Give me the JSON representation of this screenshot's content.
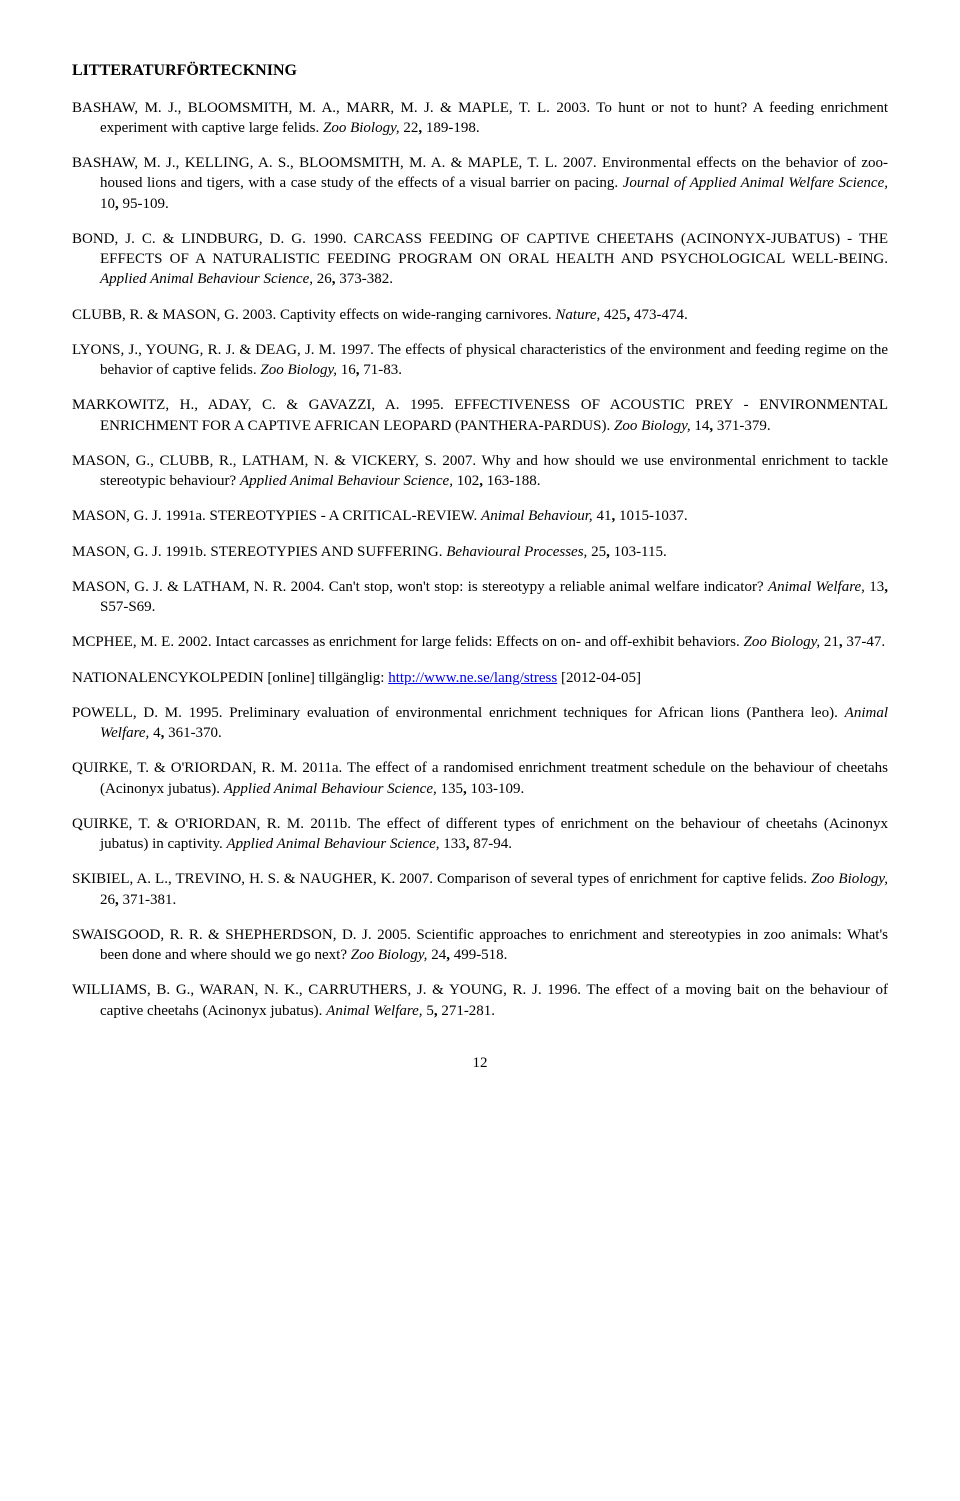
{
  "heading": "LITTERATURFÖRTECKNING",
  "refs": [
    {
      "html": "BASHAW, M. J., BLOOMSMITH, M. A., MARR, M. J. & MAPLE, T. L. 2003. To hunt or not to hunt? A feeding enrichment experiment with captive large felids. <i>Zoo Biology,</i> 22<b>,</b> 189-198."
    },
    {
      "html": "BASHAW, M. J., KELLING, A. S., BLOOMSMITH, M. A. & MAPLE, T. L. 2007. Environmental effects on the behavior of zoo-housed lions and tigers, with a case study of the effects of a visual barrier on pacing. <i>Journal of Applied Animal Welfare Science,</i> 10<b>,</b> 95-109."
    },
    {
      "html": "BOND, J. C. & LINDBURG, D. G. 1990. CARCASS FEEDING OF CAPTIVE CHEETAHS (ACINONYX-JUBATUS) - THE EFFECTS OF A NATURALISTIC FEEDING PROGRAM ON ORAL HEALTH AND PSYCHOLOGICAL WELL-BEING. <i>Applied Animal Behaviour Science,</i> 26<b>,</b> 373-382."
    },
    {
      "html": "CLUBB, R. & MASON, G. 2003. Captivity effects on wide-ranging carnivores. <i>Nature,</i> 425<b>,</b> 473-474."
    },
    {
      "html": "LYONS, J., YOUNG, R. J. & DEAG, J. M. 1997. The effects of physical characteristics of the environment and feeding regime on the behavior of captive felids. <i>Zoo Biology,</i> 16<b>,</b> 71-83."
    },
    {
      "html": "MARKOWITZ, H., ADAY, C. & GAVAZZI, A. 1995. EFFECTIVENESS OF ACOUSTIC PREY - ENVIRONMENTAL ENRICHMENT FOR A CAPTIVE AFRICAN LEOPARD (PANTHERA-PARDUS). <i>Zoo Biology,</i> 14<b>,</b> 371-379."
    },
    {
      "html": "MASON, G., CLUBB, R., LATHAM, N. & VICKERY, S. 2007. Why and how should we use environmental enrichment to tackle stereotypic behaviour? <i>Applied Animal Behaviour Science,</i> 102<b>,</b> 163-188."
    },
    {
      "html": "MASON, G. J. 1991a. STEREOTYPIES - A CRITICAL-REVIEW. <i>Animal Behaviour,</i> 41<b>,</b> 1015-1037."
    },
    {
      "html": "MASON, G. J. 1991b. STEREOTYPIES AND SUFFERING. <i>Behavioural Processes,</i> 25<b>,</b> 103-115."
    },
    {
      "html": "MASON, G. J. & LATHAM, N. R. 2004. Can't stop, won't stop: is stereotypy a reliable animal welfare indicator? <i>Animal Welfare,</i> 13<b>,</b> S57-S69."
    },
    {
      "html": "MCPHEE, M. E. 2002. Intact carcasses as enrichment for large felids: Effects on on- and off-exhibit behaviors. <i>Zoo Biology,</i> 21<b>,</b> 37-47."
    },
    {
      "html": "NATIONALENCYKOLPEDIN [online] tillgänglig: <a class=\"link\" href=\"#\">http://www.ne.se/lang/stress</a> [2012-04-05]"
    },
    {
      "html": "POWELL, D. M. 1995. Preliminary evaluation of environmental enrichment techniques for African lions (Panthera leo). <i>Animal Welfare,</i> 4<b>,</b> 361-370."
    },
    {
      "html": "QUIRKE, T. & O'RIORDAN, R. M. 2011a. The effect of a randomised enrichment treatment schedule on the behaviour of cheetahs (Acinonyx jubatus). <i>Applied Animal Behaviour Science,</i> 135<b>,</b> 103-109."
    },
    {
      "html": "QUIRKE, T. & O'RIORDAN, R. M. 2011b. The effect of different types of enrichment on the behaviour of cheetahs (Acinonyx jubatus) in captivity. <i>Applied Animal Behaviour Science,</i> 133<b>,</b> 87-94."
    },
    {
      "html": "SKIBIEL, A. L., TREVINO, H. S. & NAUGHER, K. 2007. Comparison of several types of enrichment for captive felids. <i>Zoo Biology,</i> 26<b>,</b> 371-381."
    },
    {
      "html": "SWAISGOOD, R. R. & SHEPHERDSON, D. J. 2005. Scientific approaches to enrichment and stereotypies in zoo animals: What's been done and where should we go next? <i>Zoo Biology,</i> 24<b>,</b> 499-518."
    },
    {
      "html": "WILLIAMS, B. G., WARAN, N. K., CARRUTHERS, J. & YOUNG, R. J. 1996. The effect of a moving bait on the behaviour of captive cheetahs (Acinonyx jubatus). <i>Animal Welfare,</i> 5<b>,</b> 271-281."
    }
  ],
  "page_number": "12"
}
